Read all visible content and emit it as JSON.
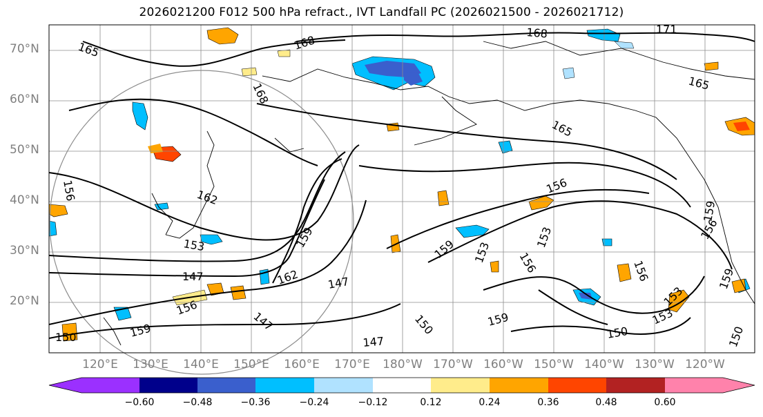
{
  "title": "2026021200 F012 500 hPa refract., IVT Landfall PC (2026021500 - 2026021712)",
  "map": {
    "lat_labels": [
      "70°N",
      "60°N",
      "50°N",
      "40°N",
      "30°N",
      "20°N"
    ],
    "lon_labels": [
      "120°E",
      "130°E",
      "140°E",
      "150°E",
      "160°E",
      "170°E",
      "180°W",
      "170°W",
      "160°W",
      "150°W",
      "140°W",
      "130°W",
      "120°W"
    ],
    "contour_labels": [
      "165",
      "168",
      "168",
      "171",
      "168",
      "165",
      "165",
      "156",
      "156",
      "162",
      "153",
      "159",
      "147",
      "162",
      "147",
      "159",
      "153",
      "156",
      "153",
      "156",
      "147",
      "150",
      "159",
      "147",
      "153",
      "150",
      "156",
      "159",
      "159",
      "156",
      "150",
      "150",
      "159",
      "153"
    ],
    "colors": {
      "contour": "#000000",
      "grid": "#8c8c8c",
      "circle": "#8c8c8c"
    }
  },
  "colorbar": {
    "tick_labels": [
      "−0.60",
      "−0.48",
      "−0.36",
      "−0.24",
      "−0.12",
      "0.12",
      "0.24",
      "0.36",
      "0.48",
      "0.60"
    ],
    "colors": [
      "#9b30ff",
      "#00008b",
      "#3a5fcd",
      "#00bfff",
      "#b0e2ff",
      "#ffffff",
      "#ffec8b",
      "#ffa500",
      "#ff4500",
      "#b22222",
      "#ff82ab"
    ]
  }
}
